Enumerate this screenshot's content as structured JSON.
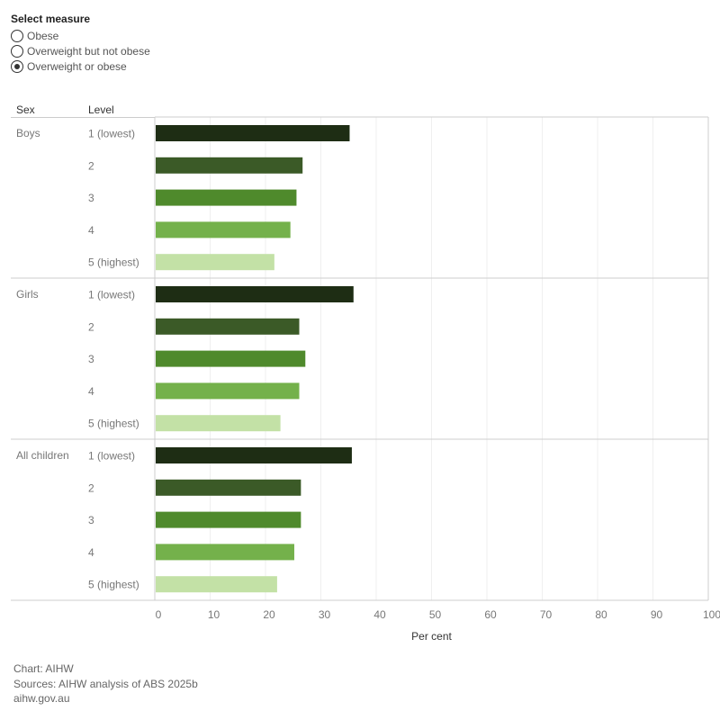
{
  "control": {
    "title": "Select measure",
    "options": [
      {
        "label": "Obese",
        "selected": false
      },
      {
        "label": "Overweight but not obese",
        "selected": false
      },
      {
        "label": "Overweight or obese",
        "selected": true
      }
    ]
  },
  "chart_data": {
    "type": "bar",
    "orientation": "horizontal",
    "row_headers": [
      "Sex",
      "Level"
    ],
    "xlabel": "Per cent",
    "xlim": [
      0,
      100
    ],
    "x_ticks": [
      0,
      10,
      20,
      30,
      40,
      50,
      60,
      70,
      80,
      90,
      100
    ],
    "grid": true,
    "level_colors": {
      "1 (lowest)": "#1e2d14",
      "2": "#3b5a27",
      "3": "#4f8a2c",
      "4": "#74b14b",
      "5 (highest)": "#c3e1a6"
    },
    "groups": [
      {
        "name": "Boys",
        "bars": [
          {
            "level": "1 (lowest)",
            "value": 35.2
          },
          {
            "level": "2",
            "value": 26.7
          },
          {
            "level": "3",
            "value": 25.6
          },
          {
            "level": "4",
            "value": 24.5
          },
          {
            "level": "5 (highest)",
            "value": 21.6
          }
        ]
      },
      {
        "name": "Girls",
        "bars": [
          {
            "level": "1 (lowest)",
            "value": 35.9
          },
          {
            "level": "2",
            "value": 26.1
          },
          {
            "level": "3",
            "value": 27.2
          },
          {
            "level": "4",
            "value": 26.1
          },
          {
            "level": "5 (highest)",
            "value": 22.7
          }
        ]
      },
      {
        "name": "All children",
        "bars": [
          {
            "level": "1 (lowest)",
            "value": 35.6
          },
          {
            "level": "2",
            "value": 26.4
          },
          {
            "level": "3",
            "value": 26.4
          },
          {
            "level": "4",
            "value": 25.2
          },
          {
            "level": "5 (highest)",
            "value": 22.1
          }
        ]
      }
    ]
  },
  "footer": {
    "chart_credit": "Chart: AIHW",
    "sources": "Sources: AIHW analysis of ABS 2025b",
    "website": "aihw.gov.au"
  }
}
